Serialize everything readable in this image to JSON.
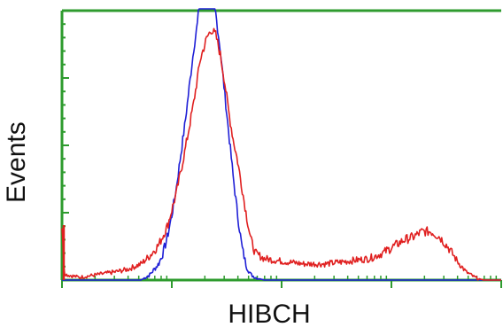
{
  "chart_data": {
    "type": "line",
    "title": "",
    "xlabel": "HIBCH",
    "ylabel": "Events",
    "x_scale": "log",
    "grid": false,
    "legend": "none",
    "colors": {
      "axis": "#2e9b2e",
      "series_blue": "#1f1fd6",
      "series_red": "#e02020"
    },
    "series": [
      {
        "color": "#1f1fd6",
        "points": [
          [
            0.0,
            0.0
          ],
          [
            0.1,
            0.0
          ],
          [
            0.14,
            0.0
          ],
          [
            0.18,
            0.0
          ],
          [
            0.2,
            0.02
          ],
          [
            0.22,
            0.06
          ],
          [
            0.23,
            0.1
          ],
          [
            0.24,
            0.16
          ],
          [
            0.25,
            0.24
          ],
          [
            0.26,
            0.34
          ],
          [
            0.27,
            0.46
          ],
          [
            0.28,
            0.58
          ],
          [
            0.29,
            0.72
          ],
          [
            0.3,
            0.86
          ],
          [
            0.31,
            0.97
          ],
          [
            0.312,
            1.05
          ],
          [
            0.33,
            1.05
          ],
          [
            0.345,
            1.05
          ],
          [
            0.35,
            0.99
          ],
          [
            0.36,
            0.86
          ],
          [
            0.37,
            0.7
          ],
          [
            0.38,
            0.54
          ],
          [
            0.39,
            0.38
          ],
          [
            0.4,
            0.24
          ],
          [
            0.41,
            0.12
          ],
          [
            0.42,
            0.05
          ],
          [
            0.43,
            0.02
          ],
          [
            0.44,
            0.01
          ],
          [
            0.46,
            0.0
          ],
          [
            0.55,
            0.0
          ],
          [
            1.0,
            0.0
          ]
        ]
      },
      {
        "color": "#e02020",
        "points": [
          [
            0.0,
            0.2
          ],
          [
            0.005,
            0.03
          ],
          [
            0.01,
            0.02
          ],
          [
            0.04,
            0.01
          ],
          [
            0.08,
            0.02
          ],
          [
            0.12,
            0.03
          ],
          [
            0.15,
            0.04
          ],
          [
            0.18,
            0.06
          ],
          [
            0.2,
            0.09
          ],
          [
            0.22,
            0.13
          ],
          [
            0.24,
            0.2
          ],
          [
            0.26,
            0.32
          ],
          [
            0.28,
            0.48
          ],
          [
            0.3,
            0.66
          ],
          [
            0.315,
            0.82
          ],
          [
            0.33,
            0.9
          ],
          [
            0.34,
            0.93
          ],
          [
            0.35,
            0.91
          ],
          [
            0.36,
            0.84
          ],
          [
            0.37,
            0.74
          ],
          [
            0.38,
            0.62
          ],
          [
            0.39,
            0.52
          ],
          [
            0.4,
            0.44
          ],
          [
            0.41,
            0.34
          ],
          [
            0.42,
            0.24
          ],
          [
            0.43,
            0.15
          ],
          [
            0.44,
            0.1
          ],
          [
            0.46,
            0.08
          ],
          [
            0.5,
            0.07
          ],
          [
            0.55,
            0.06
          ],
          [
            0.6,
            0.06
          ],
          [
            0.65,
            0.07
          ],
          [
            0.7,
            0.08
          ],
          [
            0.73,
            0.1
          ],
          [
            0.76,
            0.13
          ],
          [
            0.78,
            0.15
          ],
          [
            0.8,
            0.16
          ],
          [
            0.82,
            0.18
          ],
          [
            0.84,
            0.18
          ],
          [
            0.86,
            0.16
          ],
          [
            0.88,
            0.12
          ],
          [
            0.9,
            0.07
          ],
          [
            0.92,
            0.03
          ],
          [
            0.94,
            0.01
          ],
          [
            0.96,
            0.0
          ],
          [
            1.0,
            0.0
          ]
        ]
      }
    ]
  }
}
